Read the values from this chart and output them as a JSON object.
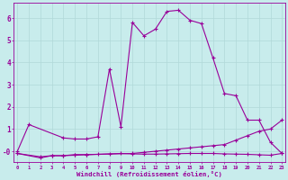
{
  "xlabel": "Windchill (Refroidissement éolien,°C)",
  "background_color": "#c8ecec",
  "line_color": "#990099",
  "grid_color": "#b0d8d8",
  "x_hours": [
    0,
    1,
    2,
    3,
    4,
    5,
    6,
    7,
    8,
    9,
    10,
    11,
    12,
    13,
    14,
    15,
    16,
    17,
    18,
    19,
    20,
    21,
    22,
    23
  ],
  "line1_x": [
    0,
    1,
    4,
    5,
    6,
    7,
    8,
    9,
    10,
    11,
    12,
    13,
    14,
    15,
    16,
    17,
    18,
    19,
    20,
    21,
    22,
    23
  ],
  "line1_y": [
    0.0,
    1.2,
    0.6,
    0.55,
    0.55,
    0.65,
    3.7,
    1.1,
    5.8,
    5.2,
    5.5,
    6.3,
    6.35,
    5.9,
    5.75,
    4.2,
    2.6,
    2.5,
    1.4,
    1.4,
    0.4,
    -0.1
  ],
  "line2_x": [
    0,
    2,
    3,
    4,
    5,
    6,
    10,
    11,
    12,
    13,
    14,
    15,
    16,
    17,
    18,
    19,
    20,
    21,
    22,
    23
  ],
  "line2_y": [
    -0.1,
    -0.3,
    -0.2,
    -0.2,
    -0.15,
    -0.15,
    -0.1,
    -0.05,
    0.0,
    0.05,
    0.1,
    0.15,
    0.2,
    0.25,
    0.3,
    0.5,
    0.7,
    0.9,
    1.0,
    1.4
  ],
  "line3_x": [
    0,
    2,
    3,
    4,
    5,
    6,
    7,
    8,
    9,
    10,
    11,
    12,
    13,
    14,
    15,
    16,
    17,
    18,
    19,
    20,
    21,
    22,
    23
  ],
  "line3_y": [
    -0.1,
    -0.25,
    -0.2,
    -0.2,
    -0.18,
    -0.16,
    -0.14,
    -0.12,
    -0.1,
    -0.12,
    -0.13,
    -0.13,
    -0.12,
    -0.11,
    -0.1,
    -0.1,
    -0.1,
    -0.12,
    -0.13,
    -0.14,
    -0.16,
    -0.18,
    -0.1
  ],
  "ylim": [
    -0.5,
    6.7
  ],
  "yticks": [
    0,
    1,
    2,
    3,
    4,
    5,
    6
  ],
  "ytick_labels": [
    "-0",
    "1",
    "2",
    "3",
    "4",
    "5",
    "6"
  ],
  "xlim": [
    -0.3,
    23.3
  ]
}
